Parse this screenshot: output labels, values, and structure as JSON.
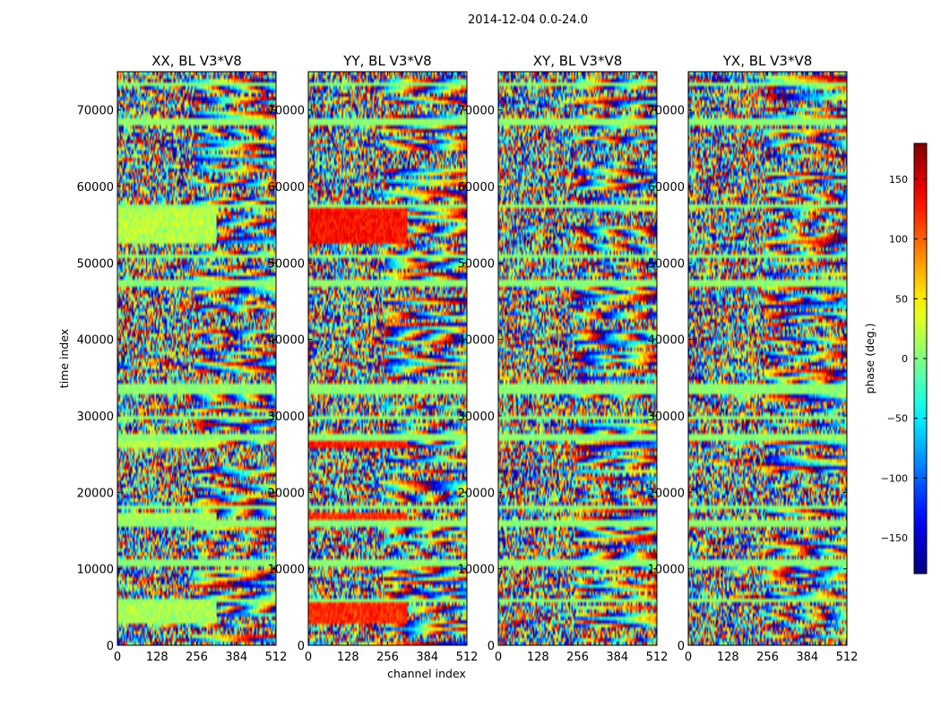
{
  "figure": {
    "title": "2014-12-04 0.0-24.0"
  },
  "chart_data": {
    "type": "heatmap",
    "title": "2014-12-04 0.0-24.0",
    "xlabel": "channel index",
    "ylabel": "time index",
    "xlim": [
      0,
      512
    ],
    "ylim": [
      0,
      75000
    ],
    "x_ticks": [
      0,
      128,
      256,
      384,
      512
    ],
    "y_ticks": [
      0,
      10000,
      20000,
      30000,
      40000,
      50000,
      60000,
      70000
    ],
    "colormap": "jet",
    "panels": [
      {
        "title": "XX, BL V3*V8",
        "polarization": "XX"
      },
      {
        "title": "YY, BL V3*V8",
        "polarization": "YY"
      },
      {
        "title": "XY, BL V3*V8",
        "polarization": "XY"
      },
      {
        "title": "YX, BL V3*V8",
        "polarization": "YX"
      }
    ],
    "colorbar": {
      "label": "phase (deg.)",
      "range": [
        -180,
        180
      ],
      "ticks": [
        -150,
        -100,
        -50,
        0,
        50,
        100,
        150
      ]
    },
    "flagged_time_ranges": [
      [
        5500,
        6300
      ],
      [
        10500,
        11200
      ],
      [
        15500,
        16300
      ],
      [
        17800,
        18400
      ],
      [
        26500,
        27500
      ],
      [
        29500,
        30200
      ],
      [
        33000,
        34000
      ],
      [
        47000,
        48000
      ],
      [
        50500,
        51200
      ],
      [
        57200,
        57800
      ],
      [
        68000,
        68700
      ],
      [
        73000,
        73600
      ]
    ],
    "coherent_blocks": [
      {
        "panel": "XX",
        "t_range": [
          52500,
          57200
        ],
        "ch_range": [
          0,
          320
        ],
        "phase": 20
      },
      {
        "panel": "XX",
        "t_range": [
          26000,
          27200
        ],
        "ch_range": [
          0,
          320
        ],
        "phase": 20
      },
      {
        "panel": "XX",
        "t_range": [
          15800,
          17200
        ],
        "ch_range": [
          0,
          320
        ],
        "phase": 15
      },
      {
        "panel": "XX",
        "t_range": [
          3000,
          6000
        ],
        "ch_range": [
          0,
          320
        ],
        "phase": 15
      },
      {
        "panel": "YY",
        "t_range": [
          52500,
          57200
        ],
        "ch_range": [
          0,
          320
        ],
        "phase": 130
      },
      {
        "panel": "YY",
        "t_range": [
          26000,
          27200
        ],
        "ch_range": [
          0,
          320
        ],
        "phase": 125
      },
      {
        "panel": "YY",
        "t_range": [
          15800,
          17200
        ],
        "ch_range": [
          0,
          320
        ],
        "phase": 120
      },
      {
        "panel": "YY",
        "t_range": [
          3000,
          6000
        ],
        "ch_range": [
          0,
          320
        ],
        "phase": 120
      }
    ]
  }
}
